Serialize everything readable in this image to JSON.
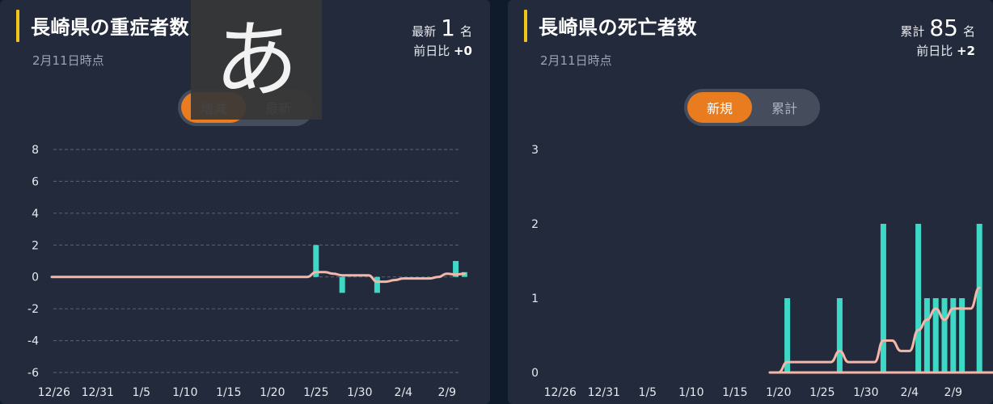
{
  "left": {
    "title": "長崎県の重症者数",
    "date": "2月11日時点",
    "stat_label": "最新",
    "stat_value": "1",
    "stat_unit": "名",
    "diff_label": "前日比",
    "diff_value": "+0",
    "toggle": [
      "増減",
      "最新"
    ],
    "active_toggle": 0
  },
  "right": {
    "title": "長崎県の死亡者数",
    "date": "2月11日時点",
    "stat_label": "累計",
    "stat_value": "85",
    "stat_unit": "名",
    "diff_label": "前日比",
    "diff_value": "+2",
    "toggle": [
      "新規",
      "累計"
    ],
    "active_toggle": 0
  },
  "ime_indicator": "あ",
  "colors": {
    "bar": "#3dd9c6",
    "line": "#f4b6a8",
    "toggle_active": "#e87c1e",
    "accent_bar": "#f0c419"
  },
  "chart_data": [
    {
      "type": "bar",
      "series": [
        {
          "kind": "bar",
          "values": [
            [
              1,
              2
            ],
            [
              4,
              -1
            ],
            [
              8,
              -1
            ],
            [
              17,
              1
            ],
            [
              18,
              0.3
            ]
          ]
        },
        {
          "kind": "line",
          "values": [
            [
              1,
              0.3
            ],
            [
              2,
              0.3
            ],
            [
              3,
              0.2
            ],
            [
              4,
              0.1
            ],
            [
              5,
              0.1
            ],
            [
              6,
              0.1
            ],
            [
              7,
              0.1
            ],
            [
              8,
              -0.3
            ],
            [
              9,
              -0.3
            ],
            [
              10,
              -0.2
            ],
            [
              11,
              -0.1
            ],
            [
              12,
              -0.1
            ],
            [
              13,
              -0.1
            ],
            [
              14,
              -0.1
            ],
            [
              15,
              0
            ],
            [
              16,
              0.2
            ],
            [
              17,
              0.15
            ],
            [
              18,
              0.2
            ]
          ]
        }
      ],
      "x_start": "12/26",
      "x_ticks": [
        {
          "day": -29,
          "label": "12/26"
        },
        {
          "day": -24,
          "label": "12/31"
        },
        {
          "day": -19,
          "label": "1/5"
        },
        {
          "day": -14,
          "label": "1/10"
        },
        {
          "day": -9,
          "label": "1/15"
        },
        {
          "day": -4,
          "label": "1/20"
        },
        {
          "day": 1,
          "label": "1/25"
        },
        {
          "day": 6,
          "label": "1/30"
        },
        {
          "day": 11,
          "label": "2/4"
        },
        {
          "day": 16,
          "label": "2/9"
        }
      ],
      "ylim": [
        -6,
        8
      ],
      "yticks": [
        8,
        6,
        4,
        2,
        0,
        -2,
        -4,
        -6
      ],
      "grid": true
    },
    {
      "type": "bar",
      "series": [
        {
          "kind": "bar",
          "values": [
            [
              -3,
              1
            ],
            [
              3,
              1
            ],
            [
              8,
              2
            ],
            [
              12,
              2
            ],
            [
              13,
              1
            ],
            [
              14,
              1
            ],
            [
              15,
              1
            ],
            [
              16,
              1
            ],
            [
              17,
              1
            ],
            [
              19,
              2
            ]
          ]
        },
        {
          "kind": "line",
          "values": [
            [
              -4,
              0
            ],
            [
              -3,
              0.14
            ],
            [
              -2,
              0.14
            ],
            [
              -1,
              0.14
            ],
            [
              0,
              0.14
            ],
            [
              1,
              0.14
            ],
            [
              2,
              0.14
            ],
            [
              3,
              0.29
            ],
            [
              4,
              0.14
            ],
            [
              5,
              0.14
            ],
            [
              6,
              0.14
            ],
            [
              7,
              0.14
            ],
            [
              8,
              0.43
            ],
            [
              9,
              0.43
            ],
            [
              10,
              0.29
            ],
            [
              11,
              0.29
            ],
            [
              12,
              0.57
            ],
            [
              13,
              0.71
            ],
            [
              14,
              0.86
            ],
            [
              15,
              0.71
            ],
            [
              16,
              0.86
            ],
            [
              17,
              0.86
            ],
            [
              18,
              0.86
            ],
            [
              19,
              1.14
            ]
          ]
        }
      ],
      "x_ticks": [
        {
          "day": -29,
          "label": "12/26"
        },
        {
          "day": -24,
          "label": "12/31"
        },
        {
          "day": -19,
          "label": "1/5"
        },
        {
          "day": -14,
          "label": "1/10"
        },
        {
          "day": -9,
          "label": "1/15"
        },
        {
          "day": -4,
          "label": "1/20"
        },
        {
          "day": 1,
          "label": "1/25"
        },
        {
          "day": 6,
          "label": "1/30"
        },
        {
          "day": 11,
          "label": "2/4"
        },
        {
          "day": 16,
          "label": "2/9"
        }
      ],
      "ylim": [
        0,
        3
      ],
      "yticks": [
        3,
        2,
        1,
        0
      ],
      "grid": true
    }
  ]
}
